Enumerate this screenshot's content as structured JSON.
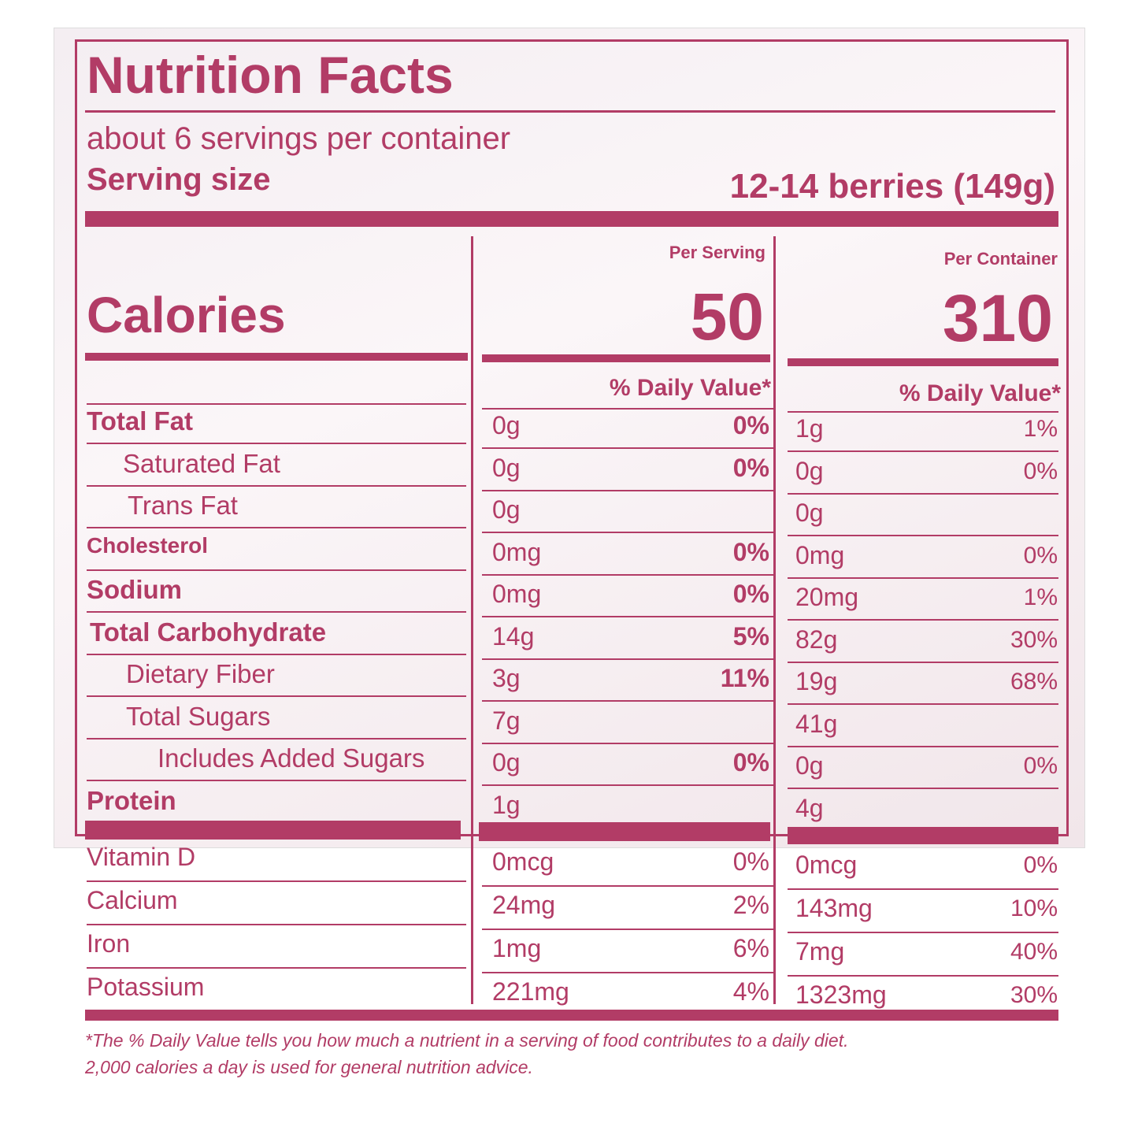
{
  "title": "Nutrition Facts",
  "servings_per_container": "about 6 servings per container",
  "serving_size": {
    "label": "Serving size",
    "value": "12-14 berries (149g)"
  },
  "columns": [
    "Per Serving",
    "Per Container"
  ],
  "calories": {
    "label": "Calories",
    "per_serving": "50",
    "per_container": "310"
  },
  "daily_value_headers": [
    "% Daily Value*",
    "% Daily Value*"
  ],
  "nutrients": [
    [
      "Total Fat",
      "0g",
      "0%",
      "1g",
      "1%"
    ],
    [
      "Saturated Fat",
      "0g",
      "0%",
      "0g",
      "0%"
    ],
    [
      "Trans Fat",
      "0g",
      null,
      "0g",
      null
    ],
    [
      "Cholesterol",
      "0mg",
      "0%",
      "0mg",
      "0%"
    ],
    [
      "Sodium",
      "0mg",
      "0%",
      "20mg",
      "1%"
    ],
    [
      "Total Carbohydrate",
      "14g",
      "5%",
      "82g",
      "30%"
    ],
    [
      "Dietary Fiber",
      "3g",
      "11%",
      "19g",
      "68%"
    ],
    [
      "Total Sugars",
      "7g",
      null,
      "41g",
      null
    ],
    [
      "Includes Added Sugars",
      "0g",
      "0%",
      "0g",
      "0%"
    ],
    [
      "Protein",
      "1g",
      null,
      "4g",
      null
    ]
  ],
  "vitamins": [
    [
      "Vitamin D",
      "0mcg",
      "0%",
      "0mcg",
      "0%"
    ],
    [
      "Calcium",
      "24mg",
      "2%",
      "143mg",
      "10%"
    ],
    [
      "Iron",
      "1mg",
      "6%",
      "7mg",
      "40%"
    ],
    [
      "Potassium",
      "221mg",
      "4%",
      "1323mg",
      "30%"
    ]
  ],
  "footnote": [
    "*The % Daily Value tells you how much a nutrient in a serving of food contributes to a daily diet.",
    "2,000 calories a day is used for general nutrition advice."
  ]
}
